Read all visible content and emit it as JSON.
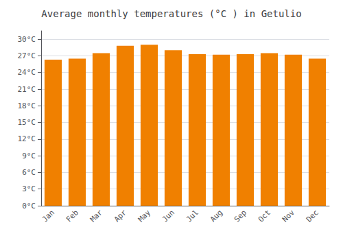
{
  "chart_data": {
    "type": "bar",
    "title": "Average monthly temperatures (°C ) in Getulio",
    "categories": [
      "Jan",
      "Feb",
      "Mar",
      "Apr",
      "May",
      "Jun",
      "Jul",
      "Aug",
      "Sep",
      "Oct",
      "Nov",
      "Dec"
    ],
    "values": [
      26.3,
      26.5,
      27.5,
      28.8,
      29.0,
      28.0,
      27.3,
      27.2,
      27.3,
      27.5,
      27.2,
      26.5
    ],
    "color": "#F08000",
    "ylim": [
      0,
      31.5
    ],
    "yticks": [
      {
        "value": 0,
        "label": "0°C"
      },
      {
        "value": 3,
        "label": "3°C"
      },
      {
        "value": 6,
        "label": "6°C"
      },
      {
        "value": 9,
        "label": "9°C"
      },
      {
        "value": 12,
        "label": "12°C"
      },
      {
        "value": 15,
        "label": "15°C"
      },
      {
        "value": 18,
        "label": "18°C"
      },
      {
        "value": 21,
        "label": "21°C"
      },
      {
        "value": 24,
        "label": "24°C"
      },
      {
        "value": 27,
        "label": "27°C"
      },
      {
        "value": 30,
        "label": "30°C"
      }
    ],
    "grid": true
  }
}
